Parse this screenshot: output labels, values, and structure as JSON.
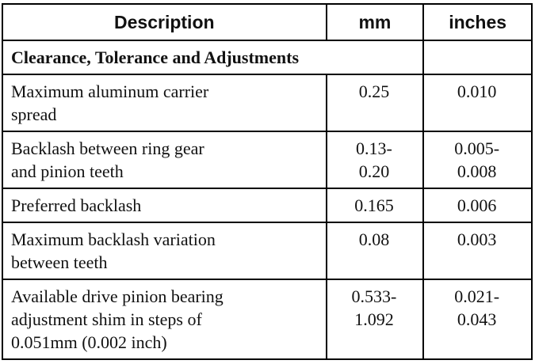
{
  "table": {
    "header": [
      "Description",
      "mm",
      "inches"
    ],
    "section": "Clearance, Tolerance and Adjustments",
    "rows": [
      [
        "Maximum aluminum carrier\nspread",
        "0.25",
        "0.010"
      ],
      [
        "Backlash between ring gear\nand pinion teeth",
        "0.13-\n0.20",
        "0.005-\n0.008"
      ],
      [
        "Preferred backlash",
        "0.165",
        "0.006"
      ],
      [
        "Maximum backlash variation\nbetween teeth",
        "0.08",
        "0.003"
      ],
      [
        "Available drive pinion bearing\nadjustment shim in steps of\n0.051mm (0.002 inch)",
        "0.533-\n1.092",
        "0.021-\n0.043"
      ]
    ]
  }
}
